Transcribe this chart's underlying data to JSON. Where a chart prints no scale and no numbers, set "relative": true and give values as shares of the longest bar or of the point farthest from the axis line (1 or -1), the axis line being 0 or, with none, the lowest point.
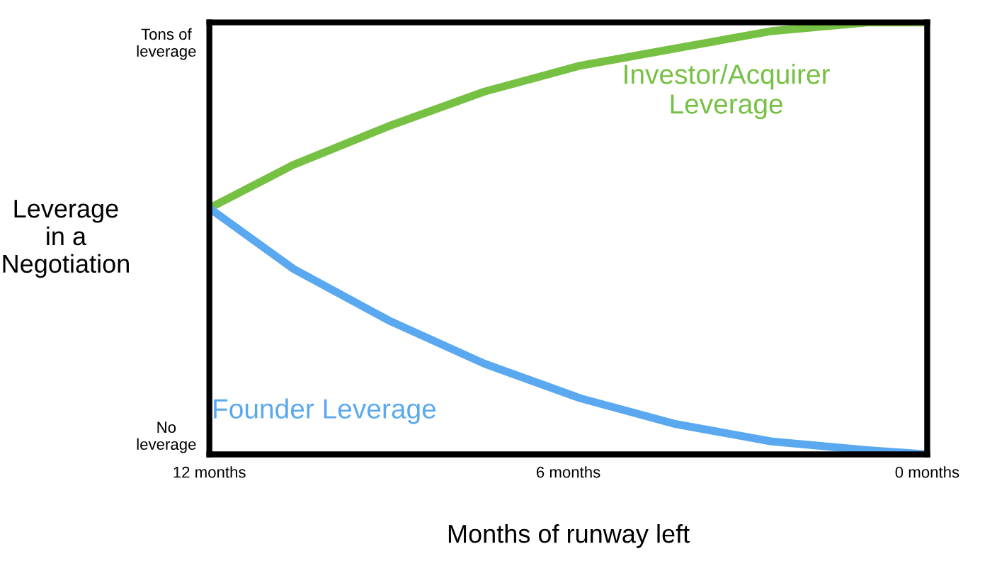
{
  "chart_data": {
    "type": "line",
    "xlabel": "Months of runway left",
    "ylabel": "Leverage\nin a\nNegotiation",
    "xlim": [
      12,
      0
    ],
    "xticks": [
      {
        "value": 12,
        "label": "12 months"
      },
      {
        "value": 6,
        "label": "6 months"
      },
      {
        "value": 0,
        "label": "0 months"
      }
    ],
    "relative": true,
    "annotations": [
      "Tons of\nleverage",
      "No\nleverage"
    ],
    "grid": false,
    "legend": false,
    "marker": "none",
    "line_style": "solid",
    "x": [
      12,
      10.6,
      9.0,
      7.4,
      5.8,
      4.2,
      2.6,
      1.0,
      0
    ],
    "series": [
      {
        "name": "Investor/Acquirer\nLeverage",
        "color": "#76c043",
        "values": [
          0.57,
          0.67,
          0.76,
          0.84,
          0.9,
          0.94,
          0.98,
          1.0,
          1.0
        ]
      },
      {
        "name": "Founder Leverage",
        "color": "#5aa9f0",
        "values": [
          0.57,
          0.43,
          0.31,
          0.21,
          0.13,
          0.07,
          0.03,
          0.01,
          0.0
        ]
      }
    ]
  }
}
